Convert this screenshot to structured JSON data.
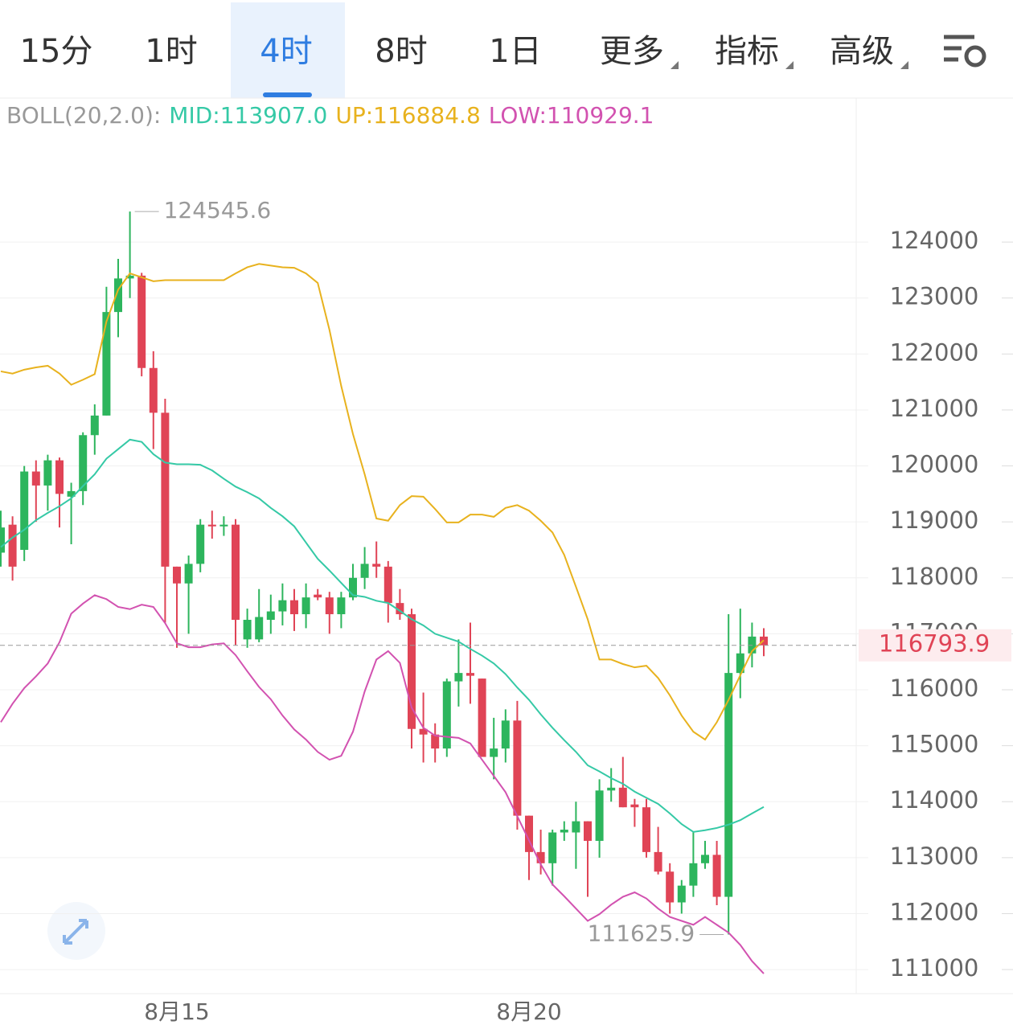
{
  "tabs": {
    "items": [
      "15分",
      "1时",
      "4时",
      "8时",
      "1日",
      "更多",
      "指标",
      "高级"
    ],
    "active": 2
  },
  "chart_data": {
    "type": "candlestick",
    "indicator": "BOLL(20,2.0):",
    "separator": ":",
    "categories": [
      null,
      null,
      null,
      null,
      null,
      null,
      null,
      null,
      null,
      null,
      null,
      null,
      null,
      null,
      null,
      "8月15",
      null,
      null,
      null,
      null,
      null,
      null,
      null,
      null,
      null,
      null,
      null,
      null,
      null,
      null,
      null,
      null,
      null,
      null,
      null,
      null,
      null,
      null,
      null,
      null,
      null,
      null,
      null,
      null,
      null,
      "8月20",
      null,
      null,
      null,
      null,
      null,
      null,
      null,
      null,
      null,
      null,
      null,
      null,
      null,
      null,
      null,
      null,
      null,
      null,
      null,
      null
    ],
    "open": [
      118450,
      118950,
      118500,
      119900,
      119650,
      120100,
      119450,
      119550,
      120550,
      120900,
      122750,
      123350,
      123400,
      121750,
      120950,
      118200,
      117900,
      118250,
      118950,
      118920,
      118950,
      116900,
      116900,
      117250,
      117400,
      117600,
      117350,
      117700,
      117650,
      117350,
      117650,
      118000,
      118250,
      118200,
      117550,
      117350,
      115300,
      115200,
      114950,
      116150,
      116300,
      116200,
      114800,
      114950,
      115450,
      113750,
      113100,
      112900,
      113450,
      113450,
      113650,
      113300,
      114200,
      114250,
      113950,
      113900,
      113100,
      112750,
      112200,
      112500,
      112900,
      113050,
      112300,
      116300,
      116650,
      116950
    ],
    "high": [
      119200,
      119100,
      120000,
      120100,
      120200,
      120150,
      119700,
      120600,
      121100,
      123200,
      123700,
      124545.6,
      123450,
      122050,
      121200,
      118200,
      118400,
      119050,
      119200,
      119100,
      119050,
      117450,
      117800,
      117700,
      117900,
      117800,
      117900,
      117800,
      117750,
      117750,
      118250,
      118550,
      118650,
      118300,
      117800,
      117450,
      115950,
      115400,
      116200,
      116900,
      117200,
      116200,
      115500,
      115650,
      115800,
      113750,
      113500,
      113500,
      113650,
      114000,
      113650,
      114400,
      114600,
      114800,
      114050,
      114050,
      113550,
      112900,
      112600,
      113450,
      113300,
      113300,
      117350,
      117450,
      117200,
      117100
    ],
    "low": [
      118200,
      117950,
      118300,
      119000,
      119200,
      118900,
      118600,
      119300,
      120200,
      120900,
      122300,
      123000,
      121600,
      120300,
      117200,
      116750,
      117000,
      118100,
      118700,
      118750,
      116800,
      116750,
      116850,
      117000,
      117150,
      117050,
      117100,
      117600,
      117000,
      117100,
      117600,
      117800,
      118000,
      117200,
      117250,
      114950,
      114700,
      114700,
      114800,
      115700,
      115750,
      114800,
      114400,
      114700,
      113500,
      112600,
      112700,
      112500,
      113300,
      112800,
      112300,
      113000,
      114000,
      113900,
      113550,
      113000,
      112700,
      112000,
      112000,
      112300,
      112800,
      112150,
      111625.9,
      115850,
      116400,
      116600
    ],
    "close": [
      118900,
      118200,
      119900,
      119650,
      120100,
      119500,
      119550,
      120550,
      120900,
      122750,
      123350,
      123400,
      121750,
      120950,
      118200,
      117900,
      118250,
      118950,
      118920,
      118950,
      117250,
      117250,
      117300,
      117400,
      117600,
      117350,
      117650,
      117650,
      117350,
      117650,
      118000,
      118250,
      118200,
      117550,
      117350,
      115300,
      115200,
      114950,
      116150,
      116300,
      116250,
      114800,
      114950,
      115450,
      113750,
      113100,
      112900,
      113450,
      113500,
      113650,
      113300,
      114200,
      114250,
      113900,
      113900,
      113100,
      112750,
      112200,
      112500,
      112900,
      113050,
      112300,
      116300,
      116650,
      116950,
      116793.9
    ],
    "up_color": "#2db55d",
    "down_color": "#e04456",
    "bands": [
      {
        "name": "MID",
        "color": "#35c9a6",
        "last_label": "113907.0",
        "values": [
          118550,
          118720,
          118860,
          119030,
          119160,
          119280,
          119420,
          119640,
          119850,
          120130,
          120300,
          120470,
          120430,
          120210,
          120060,
          120030,
          120030,
          120020,
          119920,
          119770,
          119630,
          119530,
          119420,
          119250,
          119100,
          118920,
          118630,
          118340,
          118130,
          117910,
          117690,
          117660,
          117590,
          117550,
          117410,
          117260,
          117150,
          117000,
          116930,
          116860,
          116730,
          116610,
          116470,
          116280,
          116040,
          115820,
          115560,
          115320,
          115100,
          114890,
          114650,
          114540,
          114420,
          114320,
          114180,
          114070,
          113960,
          113790,
          113600,
          113460,
          113490,
          113530,
          113590,
          113670,
          113790,
          113907
        ]
      },
      {
        "name": "UP",
        "color": "#e8b21e",
        "values": [
          121690,
          121650,
          121720,
          121760,
          121790,
          121650,
          121450,
          121540,
          121640,
          122580,
          123150,
          123440,
          123370,
          123300,
          123320,
          123320,
          123320,
          123320,
          123320,
          123320,
          123440,
          123550,
          123610,
          123580,
          123550,
          123540,
          123440,
          123270,
          122430,
          121430,
          120570,
          119850,
          119060,
          119020,
          119300,
          119460,
          119450,
          119230,
          118990,
          118990,
          119130,
          119130,
          119090,
          119250,
          119300,
          119200,
          119020,
          118810,
          118410,
          117840,
          117260,
          116540,
          116540,
          116460,
          116400,
          116430,
          116210,
          115900,
          115540,
          115250,
          115110,
          115420,
          115820,
          116260,
          116690,
          116884.8
        ]
      },
      {
        "name": "LOW",
        "color": "#d252b0",
        "values": [
          115420,
          115750,
          116030,
          116240,
          116470,
          116850,
          117360,
          117540,
          117690,
          117620,
          117480,
          117440,
          117520,
          117480,
          117190,
          116830,
          116760,
          116760,
          116810,
          116830,
          116620,
          116330,
          116050,
          115830,
          115540,
          115290,
          115110,
          114890,
          114750,
          114820,
          115250,
          115970,
          116540,
          116690,
          116480,
          115680,
          115320,
          115180,
          115160,
          115140,
          115040,
          114750,
          114460,
          114170,
          113740,
          113310,
          112880,
          112520,
          112310,
          112090,
          111870,
          111990,
          112160,
          112300,
          112380,
          112270,
          112090,
          111940,
          111870,
          111800,
          111940,
          111800,
          111660,
          111440,
          111150,
          110929.1
        ]
      }
    ],
    "ylim": [
      110570,
      126530
    ],
    "yticks": [
      111000,
      112000,
      113000,
      114000,
      115000,
      116000,
      117000,
      118000,
      119000,
      120000,
      121000,
      122000,
      123000,
      124000
    ],
    "grid": true
  }
}
